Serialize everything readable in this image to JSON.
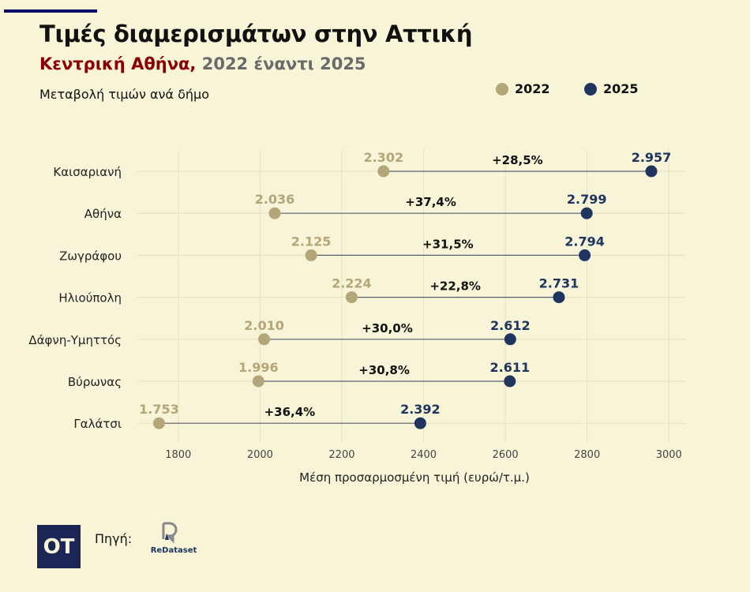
{
  "header": {
    "title": "Τιμές διαμερισμάτων στην Αττική",
    "subtitle_highlight": "Κεντρική Αθήνα,",
    "subtitle_rest": "2022 έναντι 2025",
    "caption": "Μεταβολή τιμών ανά δήμο"
  },
  "footer": {
    "source_label": "Πηγή:",
    "logo_text": "OT",
    "source_logo": "ReDataset"
  },
  "chart_data": {
    "type": "dumbbell",
    "xlabel": "Μέση προσαρμοσμένη τιμή (ευρώ/τ.μ.)",
    "xlim": [
      1700,
      3040
    ],
    "xticks": [
      1800,
      2000,
      2200,
      2400,
      2600,
      2800,
      3000
    ],
    "grid": true,
    "legend_position": "top-right",
    "series": [
      {
        "name": "2022",
        "color": "#b3a678"
      },
      {
        "name": "2025",
        "color": "#1f3560"
      }
    ],
    "categories": [
      "Καισαριανή",
      "Αθήνα",
      "Ζωγράφου",
      "Ηλιούπολη",
      "Δάφνη-Υμηττός",
      "Βύρωνας",
      "Γαλάτσι"
    ],
    "values_2022": [
      2302,
      2036,
      2125,
      2224,
      2010,
      1996,
      1753
    ],
    "values_2025": [
      2957,
      2799,
      2794,
      2731,
      2612,
      2611,
      2392
    ],
    "labels_2022": [
      "2.302",
      "2.036",
      "2.125",
      "2.224",
      "2.010",
      "1.996",
      "1.753"
    ],
    "labels_2025": [
      "2.957",
      "2.799",
      "2.794",
      "2.731",
      "2.612",
      "2.611",
      "2.392"
    ],
    "change_labels": [
      "+28,5%",
      "+37,4%",
      "+31,5%",
      "+22,8%",
      "+30,0%",
      "+30,8%",
      "+36,4%"
    ]
  }
}
